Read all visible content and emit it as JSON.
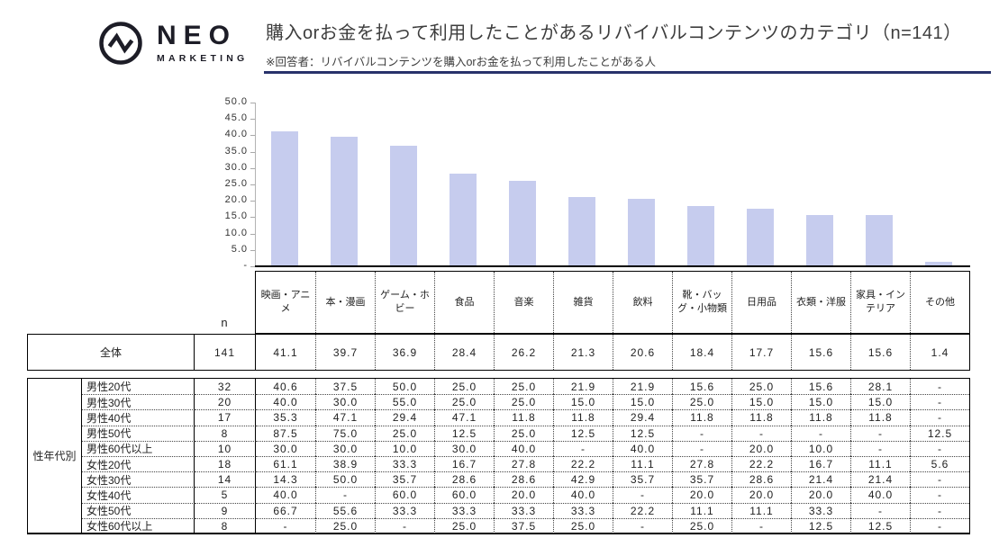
{
  "header": {
    "logo": {
      "name": "NEO",
      "sub": "MARKETING"
    },
    "title": "購入orお金を払って利用したことがあるリバイバルコンテンツのカテゴリ（n=141）",
    "note": "※回答者：リバイバルコンテンツを購入orお金を払って利用したことがある人",
    "accent_color": "#28326b"
  },
  "chart_data": {
    "type": "bar",
    "title": "購入orお金を払って利用したことがあるリバイバルコンテンツのカテゴリ（n=141）",
    "categories": [
      "映画・アニメ",
      "本・漫画",
      "ゲーム・ホビー",
      "食品",
      "音楽",
      "雑貨",
      "飲料",
      "靴・バッグ・小物類",
      "日用品",
      "衣類・洋服",
      "家具・インテリア",
      "その他"
    ],
    "values": [
      41.1,
      39.7,
      36.9,
      28.4,
      26.2,
      21.3,
      20.6,
      18.4,
      17.7,
      15.6,
      15.6,
      1.4
    ],
    "xlabel": "",
    "ylabel": "",
    "ylim": [
      0,
      50
    ],
    "ytick_labels": [
      "50.0",
      "45.0",
      "40.0",
      "35.0",
      "30.0",
      "25.0",
      "20.0",
      "15.0",
      "10.0",
      "5.0",
      "-"
    ],
    "grid": false,
    "legend": false,
    "bar_color": "#c6ccee"
  },
  "table": {
    "n_header": "n",
    "overall": {
      "label": "全体",
      "n": "141",
      "values": [
        "41.1",
        "39.7",
        "36.9",
        "28.4",
        "26.2",
        "21.3",
        "20.6",
        "18.4",
        "17.7",
        "15.6",
        "15.6",
        "1.4"
      ]
    },
    "group_label": "性年代別",
    "rows": [
      {
        "label": "男性20代",
        "n": "32",
        "values": [
          "40.6",
          "37.5",
          "50.0",
          "25.0",
          "25.0",
          "21.9",
          "21.9",
          "15.6",
          "25.0",
          "15.6",
          "28.1",
          "-"
        ]
      },
      {
        "label": "男性30代",
        "n": "20",
        "values": [
          "40.0",
          "30.0",
          "55.0",
          "25.0",
          "25.0",
          "15.0",
          "15.0",
          "25.0",
          "15.0",
          "15.0",
          "15.0",
          "-"
        ]
      },
      {
        "label": "男性40代",
        "n": "17",
        "values": [
          "35.3",
          "47.1",
          "29.4",
          "47.1",
          "11.8",
          "11.8",
          "29.4",
          "11.8",
          "11.8",
          "11.8",
          "11.8",
          "-"
        ]
      },
      {
        "label": "男性50代",
        "n": "8",
        "values": [
          "87.5",
          "75.0",
          "25.0",
          "12.5",
          "25.0",
          "12.5",
          "12.5",
          "-",
          "-",
          "-",
          "-",
          "12.5"
        ]
      },
      {
        "label": "男性60代以上",
        "n": "10",
        "values": [
          "30.0",
          "30.0",
          "10.0",
          "30.0",
          "40.0",
          "-",
          "40.0",
          "-",
          "20.0",
          "10.0",
          "-",
          "-"
        ]
      },
      {
        "label": "女性20代",
        "n": "18",
        "values": [
          "61.1",
          "38.9",
          "33.3",
          "16.7",
          "27.8",
          "22.2",
          "11.1",
          "27.8",
          "22.2",
          "16.7",
          "11.1",
          "5.6"
        ]
      },
      {
        "label": "女性30代",
        "n": "14",
        "values": [
          "14.3",
          "50.0",
          "35.7",
          "28.6",
          "28.6",
          "42.9",
          "35.7",
          "35.7",
          "28.6",
          "21.4",
          "21.4",
          "-"
        ]
      },
      {
        "label": "女性40代",
        "n": "5",
        "values": [
          "40.0",
          "-",
          "60.0",
          "60.0",
          "20.0",
          "40.0",
          "-",
          "20.0",
          "20.0",
          "20.0",
          "40.0",
          "-"
        ]
      },
      {
        "label": "女性50代",
        "n": "9",
        "values": [
          "66.7",
          "55.6",
          "33.3",
          "33.3",
          "33.3",
          "33.3",
          "22.2",
          "11.1",
          "11.1",
          "33.3",
          "-",
          "-"
        ]
      },
      {
        "label": "女性60代以上",
        "n": "8",
        "values": [
          "-",
          "25.0",
          "-",
          "25.0",
          "37.5",
          "25.0",
          "-",
          "25.0",
          "-",
          "12.5",
          "12.5",
          "-"
        ]
      }
    ]
  }
}
